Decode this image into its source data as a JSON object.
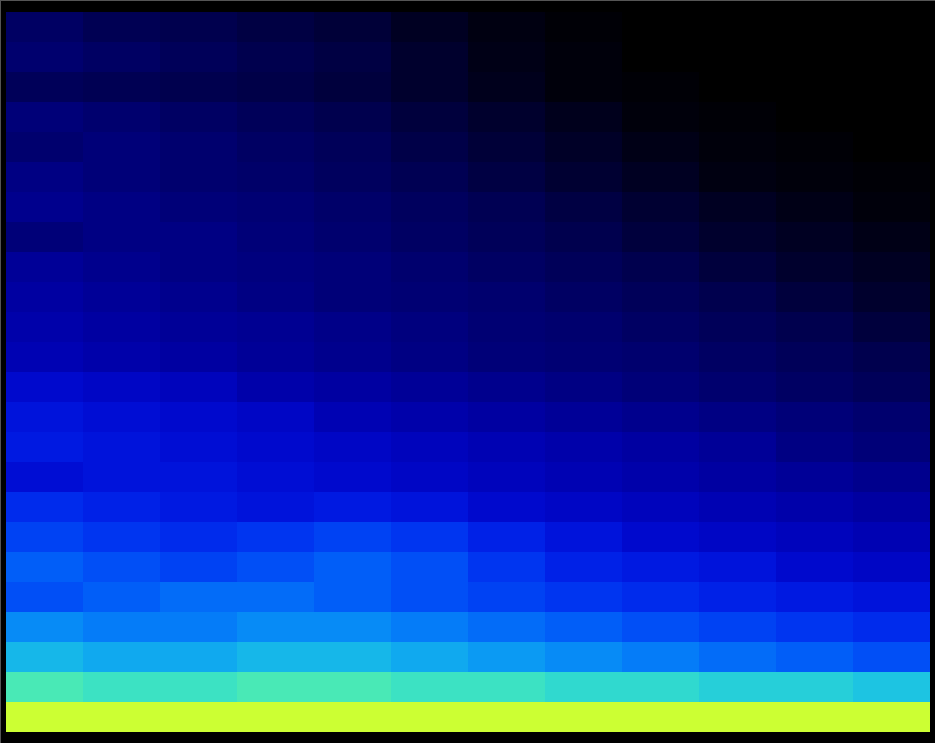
{
  "chart_data": {
    "type": "heatmap",
    "tick_labels": false,
    "zlim": [
      0,
      100
    ],
    "cells": [
      [
        18,
        15,
        14,
        12,
        10,
        6,
        3,
        1,
        0,
        0,
        0,
        0
      ],
      [
        20,
        18,
        16,
        14,
        12,
        8,
        4,
        2,
        0,
        0,
        0,
        0
      ],
      [
        16,
        15,
        14,
        13,
        11,
        8,
        5,
        2,
        1,
        0,
        0,
        0
      ],
      [
        22,
        20,
        18,
        16,
        14,
        11,
        8,
        5,
        2,
        1,
        0,
        0
      ],
      [
        20,
        22,
        20,
        18,
        16,
        13,
        10,
        7,
        4,
        2,
        1,
        0
      ],
      [
        24,
        22,
        20,
        19,
        17,
        15,
        12,
        9,
        6,
        3,
        2,
        1
      ],
      [
        26,
        24,
        22,
        21,
        19,
        17,
        15,
        12,
        9,
        6,
        4,
        2
      ],
      [
        22,
        24,
        24,
        22,
        20,
        18,
        16,
        14,
        11,
        8,
        6,
        4
      ],
      [
        28,
        26,
        24,
        23,
        22,
        20,
        18,
        16,
        14,
        11,
        8,
        6
      ],
      [
        30,
        28,
        26,
        24,
        22,
        21,
        20,
        18,
        16,
        14,
        11,
        8
      ],
      [
        32,
        30,
        28,
        27,
        25,
        23,
        21,
        20,
        18,
        16,
        14,
        11
      ],
      [
        34,
        32,
        30,
        28,
        26,
        24,
        22,
        21,
        20,
        18,
        16,
        14
      ],
      [
        40,
        38,
        36,
        32,
        30,
        28,
        26,
        24,
        22,
        20,
        18,
        16
      ],
      [
        44,
        42,
        40,
        38,
        34,
        32,
        30,
        28,
        26,
        24,
        22,
        20
      ],
      [
        46,
        44,
        42,
        40,
        38,
        36,
        34,
        32,
        30,
        28,
        24,
        22
      ],
      [
        42,
        44,
        44,
        42,
        40,
        38,
        36,
        34,
        32,
        30,
        28,
        26
      ],
      [
        50,
        48,
        46,
        44,
        46,
        44,
        40,
        38,
        36,
        34,
        32,
        30
      ],
      [
        54,
        52,
        50,
        52,
        54,
        52,
        48,
        44,
        40,
        38,
        36,
        34
      ],
      [
        58,
        56,
        54,
        56,
        58,
        56,
        52,
        48,
        46,
        44,
        40,
        38
      ],
      [
        56,
        58,
        60,
        60,
        58,
        56,
        54,
        52,
        50,
        48,
        46,
        44
      ],
      [
        64,
        62,
        62,
        64,
        64,
        62,
        60,
        58,
        56,
        54,
        52,
        50
      ],
      [
        70,
        68,
        68,
        70,
        70,
        68,
        66,
        64,
        62,
        60,
        58,
        56
      ],
      [
        80,
        78,
        78,
        80,
        80,
        78,
        78,
        76,
        76,
        74,
        74,
        72
      ],
      [
        95,
        95,
        95,
        95,
        95,
        95,
        95,
        95,
        95,
        95,
        95,
        95
      ]
    ]
  }
}
